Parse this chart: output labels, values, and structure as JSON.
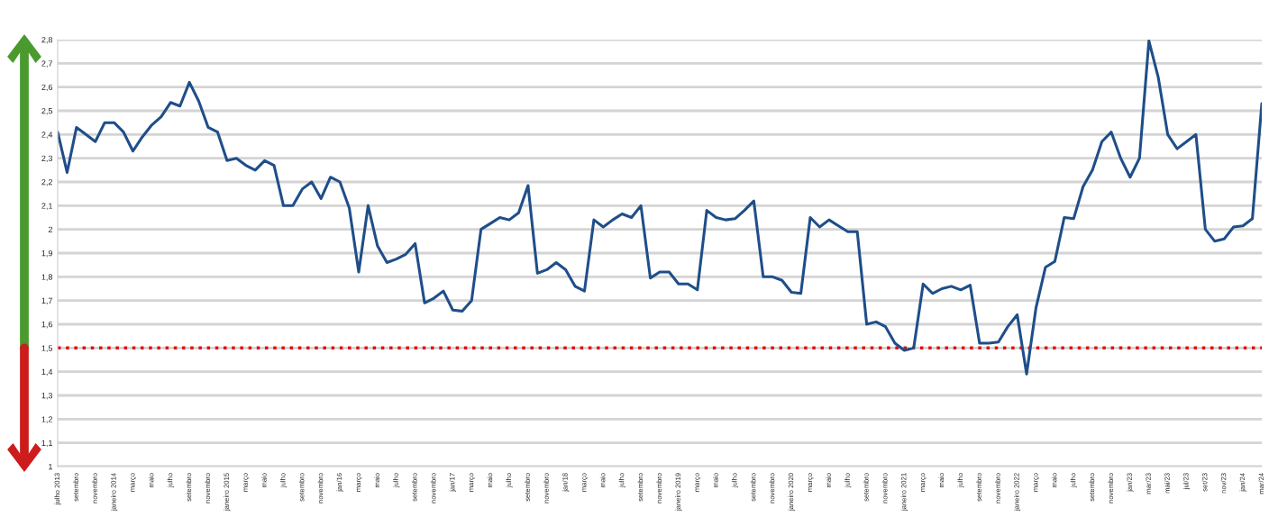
{
  "chart_data": {
    "type": "line",
    "categories": [
      "julho 2013",
      null,
      "setembro",
      null,
      "novembro",
      null,
      "janeiro 2014",
      null,
      "março",
      null,
      "maio",
      null,
      "julho",
      null,
      "setembro",
      null,
      "novembro",
      null,
      "janeiro 2015",
      null,
      "março",
      null,
      "maio",
      null,
      "julho",
      null,
      "setembro",
      null,
      "novembro",
      null,
      "jan/16",
      null,
      "março",
      null,
      "maio",
      null,
      "julho",
      null,
      "setembro",
      null,
      "novembro",
      null,
      "jan/17",
      null,
      "março",
      null,
      "maio",
      null,
      "julho",
      null,
      "setembro",
      null,
      "novembro",
      null,
      "jan/18",
      null,
      "março",
      null,
      "maio",
      null,
      "julho",
      null,
      "setembro",
      null,
      "novembro",
      null,
      "janeiro 2019",
      null,
      "março",
      null,
      "maio",
      null,
      "julho",
      null,
      "setembro",
      null,
      "novembro",
      null,
      "janeiro 2020",
      null,
      "março",
      null,
      "maio",
      null,
      "julho",
      null,
      "setembro",
      null,
      "novembro",
      null,
      "janeiro 2021",
      null,
      "março",
      null,
      "maio",
      null,
      "julho",
      null,
      "setembro",
      null,
      "novembro",
      null,
      "janeiro 2022",
      null,
      "março",
      null,
      "maio",
      null,
      "julho",
      null,
      "setembro",
      null,
      "novembro",
      null,
      "jan/23",
      null,
      "mar/23",
      null,
      "mai/23",
      null,
      "jul/23",
      null,
      "set/23",
      null,
      "nov/23",
      null,
      "jan/24",
      null,
      "mar/24"
    ],
    "series": [
      {
        "color": "#1f4e89",
        "values": [
          2.41,
          2.24,
          2.43,
          2.4,
          2.37,
          2.45,
          2.45,
          2.41,
          2.33,
          2.39,
          2.44,
          2.475,
          2.535,
          2.52,
          2.62,
          2.54,
          2.43,
          2.41,
          2.29,
          2.3,
          2.27,
          2.25,
          2.29,
          2.27,
          2.1,
          2.1,
          2.17,
          2.2,
          2.13,
          2.22,
          2.2,
          2.09,
          1.82,
          2.1,
          1.93,
          1.86,
          1.875,
          1.895,
          1.94,
          1.69,
          1.71,
          1.74,
          1.66,
          1.655,
          1.7,
          2.0,
          2.025,
          2.05,
          2.04,
          2.07,
          2.185,
          1.815,
          1.83,
          1.86,
          1.83,
          1.76,
          1.74,
          2.04,
          2.01,
          2.04,
          2.065,
          2.05,
          2.1,
          1.795,
          1.82,
          1.82,
          1.77,
          1.77,
          1.745,
          2.08,
          2.05,
          2.04,
          2.045,
          2.08,
          2.12,
          1.8,
          1.8,
          1.785,
          1.735,
          1.73,
          2.05,
          2.01,
          2.04,
          2.015,
          1.99,
          1.99,
          1.6,
          1.61,
          1.59,
          1.52,
          1.49,
          1.5,
          1.77,
          1.73,
          1.75,
          1.76,
          1.745,
          1.765,
          1.52,
          1.52,
          1.525,
          1.59,
          1.64,
          1.39,
          1.67,
          1.84,
          1.865,
          2.05,
          2.045,
          2.18,
          2.25,
          2.37,
          2.41,
          2.3,
          2.22,
          2.3,
          2.795,
          2.64,
          2.4,
          2.34,
          2.37,
          2.4,
          2.0,
          1.95,
          1.96,
          2.01,
          2.015,
          2.045,
          2.53
        ]
      }
    ],
    "ylim": [
      1,
      2.8
    ],
    "yticks": [
      1,
      {
        "value": 1.1,
        "label": "1,1"
      },
      {
        "value": 1.2,
        "label": "1,2"
      },
      {
        "value": 1.3,
        "label": "1,3"
      },
      {
        "value": 1.4,
        "label": "1,4"
      },
      {
        "value": 1.5,
        "label": "1,5"
      },
      {
        "value": 1.6,
        "label": "1,6"
      },
      {
        "value": 1.7,
        "label": "1,7"
      },
      {
        "value": 1.8,
        "label": "1,8"
      },
      {
        "value": 1.9,
        "label": "1,9"
      },
      2,
      {
        "value": 2.1,
        "label": "2,1"
      },
      {
        "value": 2.2,
        "label": "2,2"
      },
      {
        "value": 2.3,
        "label": "2,3"
      },
      {
        "value": 2.4,
        "label": "2,4"
      },
      {
        "value": 2.5,
        "label": "2,5"
      },
      {
        "value": 2.6,
        "label": "2,6"
      },
      {
        "value": 2.7,
        "label": "2,7"
      },
      {
        "value": 2.8,
        "label": "2,8"
      }
    ],
    "grid": "y",
    "ref_lines": [
      {
        "axis": "y",
        "value": 1.5,
        "color": "#e01010",
        "line_style": "dotted"
      }
    ],
    "line_style": "solid",
    "marker": "none"
  }
}
